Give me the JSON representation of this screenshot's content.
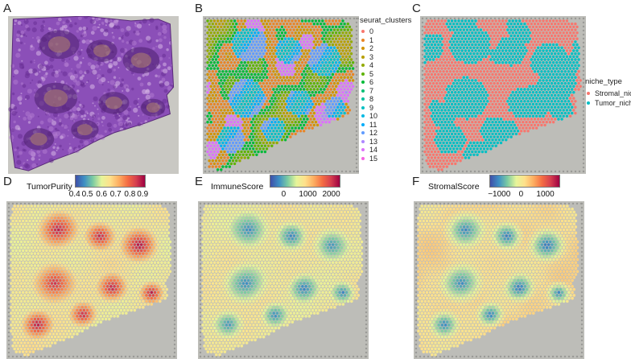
{
  "panels": {
    "A": {
      "letter": "A"
    },
    "B": {
      "letter": "B"
    },
    "C": {
      "letter": "C"
    },
    "D": {
      "letter": "D"
    },
    "E": {
      "letter": "E"
    },
    "F": {
      "letter": "F"
    }
  },
  "clusters": {
    "title": "seurat_clusters",
    "items": [
      {
        "label": "0",
        "color": "#F8766D"
      },
      {
        "label": "1",
        "color": "#E88526"
      },
      {
        "label": "2",
        "color": "#D39200"
      },
      {
        "label": "3",
        "color": "#B79F00"
      },
      {
        "label": "4",
        "color": "#93AA00"
      },
      {
        "label": "5",
        "color": "#5EB300"
      },
      {
        "label": "6",
        "color": "#00BA38"
      },
      {
        "label": "7",
        "color": "#00BF74"
      },
      {
        "label": "8",
        "color": "#00C19F"
      },
      {
        "label": "9",
        "color": "#00BFC4"
      },
      {
        "label": "10",
        "color": "#00B9E3"
      },
      {
        "label": "11",
        "color": "#00ADFA"
      },
      {
        "label": "12",
        "color": "#619CFF"
      },
      {
        "label": "13",
        "color": "#AE87FF"
      },
      {
        "label": "14",
        "color": "#DB72FB"
      },
      {
        "label": "15",
        "color": "#F564E3"
      }
    ]
  },
  "niche": {
    "title": "niche_type",
    "items": [
      {
        "label": "Stromal_niche",
        "color": "#F8766D"
      },
      {
        "label": "Tumor_niche",
        "color": "#00BFC4"
      }
    ]
  },
  "tumor_purity": {
    "title": "TumorPurity",
    "ticks": [
      "0.4",
      "0.5",
      "0.6",
      "0.7",
      "0.8",
      "0.9"
    ]
  },
  "immune_score": {
    "title": "ImmuneScore",
    "ticks": [
      "0",
      "1000",
      "2000"
    ]
  },
  "stromal_score": {
    "title": "StromalScore",
    "ticks": [
      "−1000",
      "0",
      "1000"
    ]
  },
  "colors": {
    "spectral": [
      "#3F4FA8",
      "#3E8FC4",
      "#7CCBA2",
      "#E6F59A",
      "#FEE08B",
      "#FDAE61",
      "#F46D43",
      "#D53E4F",
      "#9E0142"
    ],
    "he_tissue": "#8B4FB8",
    "background_gray": "#BDBDB8"
  }
}
